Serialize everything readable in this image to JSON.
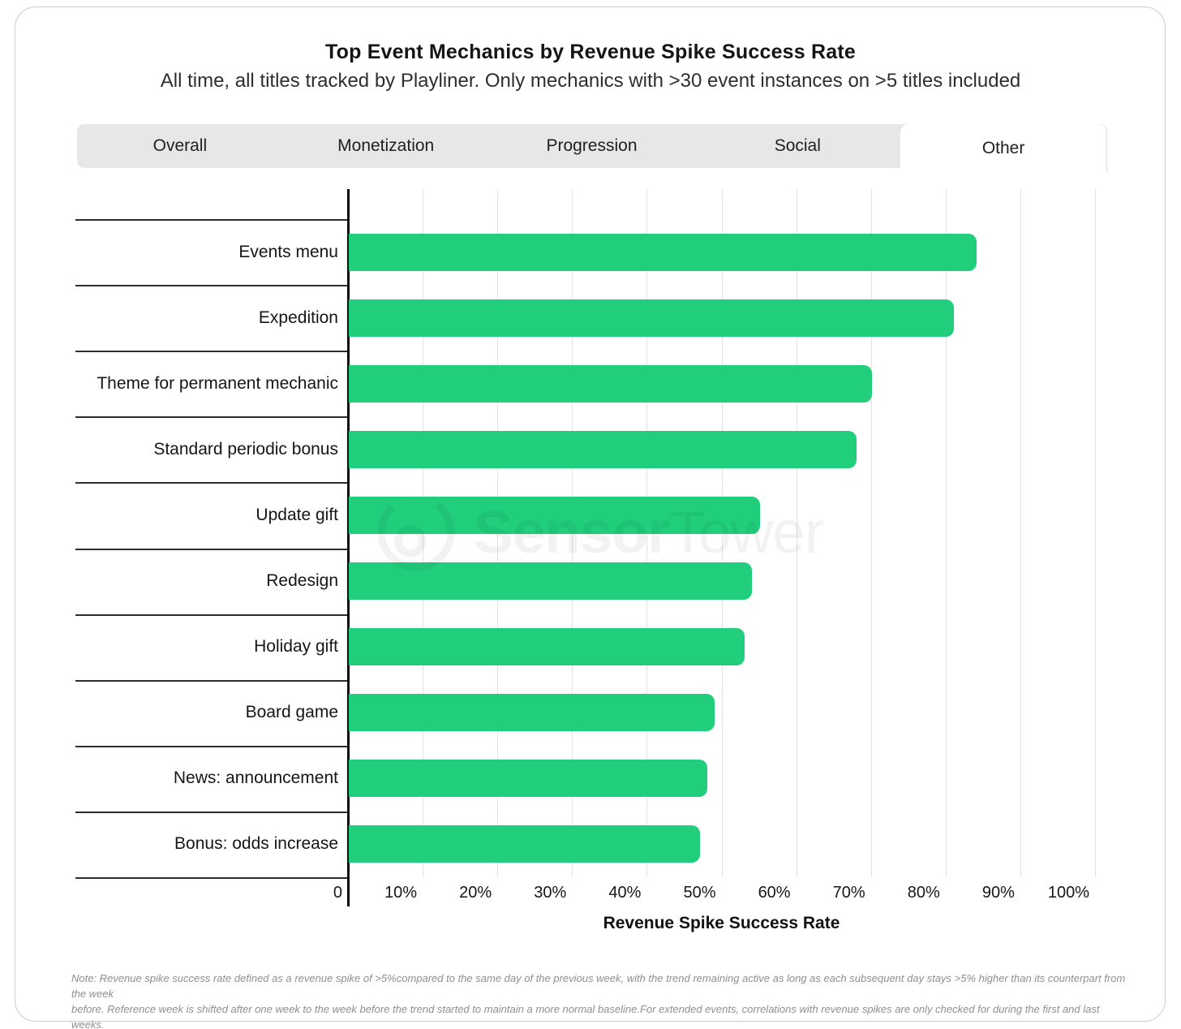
{
  "header": {
    "title": "Top Event Mechanics by Revenue Spike Success Rate",
    "subtitle": "All time, all titles tracked by Playliner. Only mechanics with >30 event instances on >5 titles included"
  },
  "tabs": [
    {
      "label": "Overall",
      "active": false
    },
    {
      "label": "Monetization",
      "active": false
    },
    {
      "label": "Progression",
      "active": false
    },
    {
      "label": "Social",
      "active": false
    },
    {
      "label": "Other",
      "active": true
    }
  ],
  "chart_data": {
    "type": "bar",
    "orientation": "horizontal",
    "title": "Top Event Mechanics by Revenue Spike Success Rate",
    "categories": [
      "Events menu",
      "Expedition",
      "Theme for permanent mechanic",
      "Standard periodic bonus",
      "Update gift",
      "Redesign",
      "Holiday gift",
      "Board game",
      "News: announcement",
      "Bonus: odds increase"
    ],
    "values": [
      84,
      81,
      70,
      68,
      55,
      54,
      53,
      49,
      48,
      47
    ],
    "unit": "%",
    "xlabel": "Revenue Spike Success Rate",
    "x_ticks": [
      "0",
      "10%",
      "20%",
      "30%",
      "40%",
      "50%",
      "60%",
      "70%",
      "80%",
      "90%",
      "100%"
    ],
    "xlim": [
      0,
      100
    ],
    "grid": "vertical",
    "bar_color": "#21ce7c"
  },
  "watermark": {
    "logo": "sensor-tower-logo",
    "text_bold": "Sensor",
    "text_light": "Tower"
  },
  "note": {
    "line1": "Note: Revenue spike success rate defined as a revenue spike of >5%compared to the same day of the previous week, with the trend remaining active as long as each subsequent day stays >5% higher than its counterpart from the week",
    "line2": "before. Reference week is shifted after one week to the week before the trend started to maintain a more normal baseline.For extended events, correlations with revenue spikes are only checked for during the first and last weeks."
  }
}
